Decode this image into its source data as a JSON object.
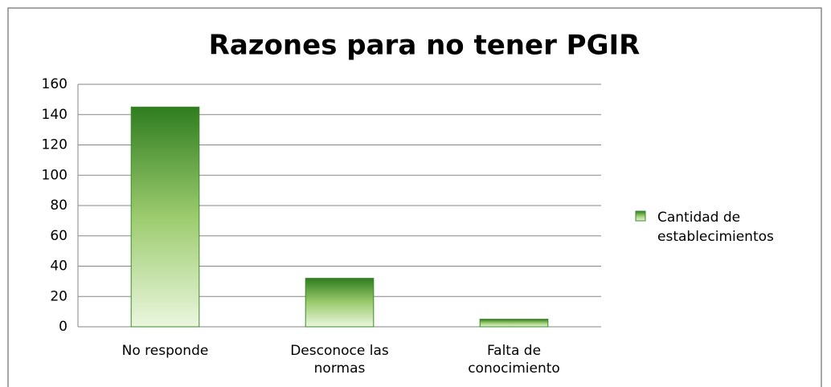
{
  "chart_data": {
    "type": "bar",
    "title": "Razones para no tener PGIR",
    "categories": [
      "No responde",
      "Desconoce las normas",
      "Falta de conocimiento"
    ],
    "series": [
      {
        "name": "Cantidad de establecimientos",
        "color": "#3a8a28",
        "values": [
          145,
          32,
          5
        ]
      }
    ],
    "ylim": [
      0,
      160
    ],
    "yticks": [
      0,
      20,
      40,
      60,
      80,
      100,
      120,
      140,
      160
    ],
    "grid": true,
    "legend": "right"
  }
}
